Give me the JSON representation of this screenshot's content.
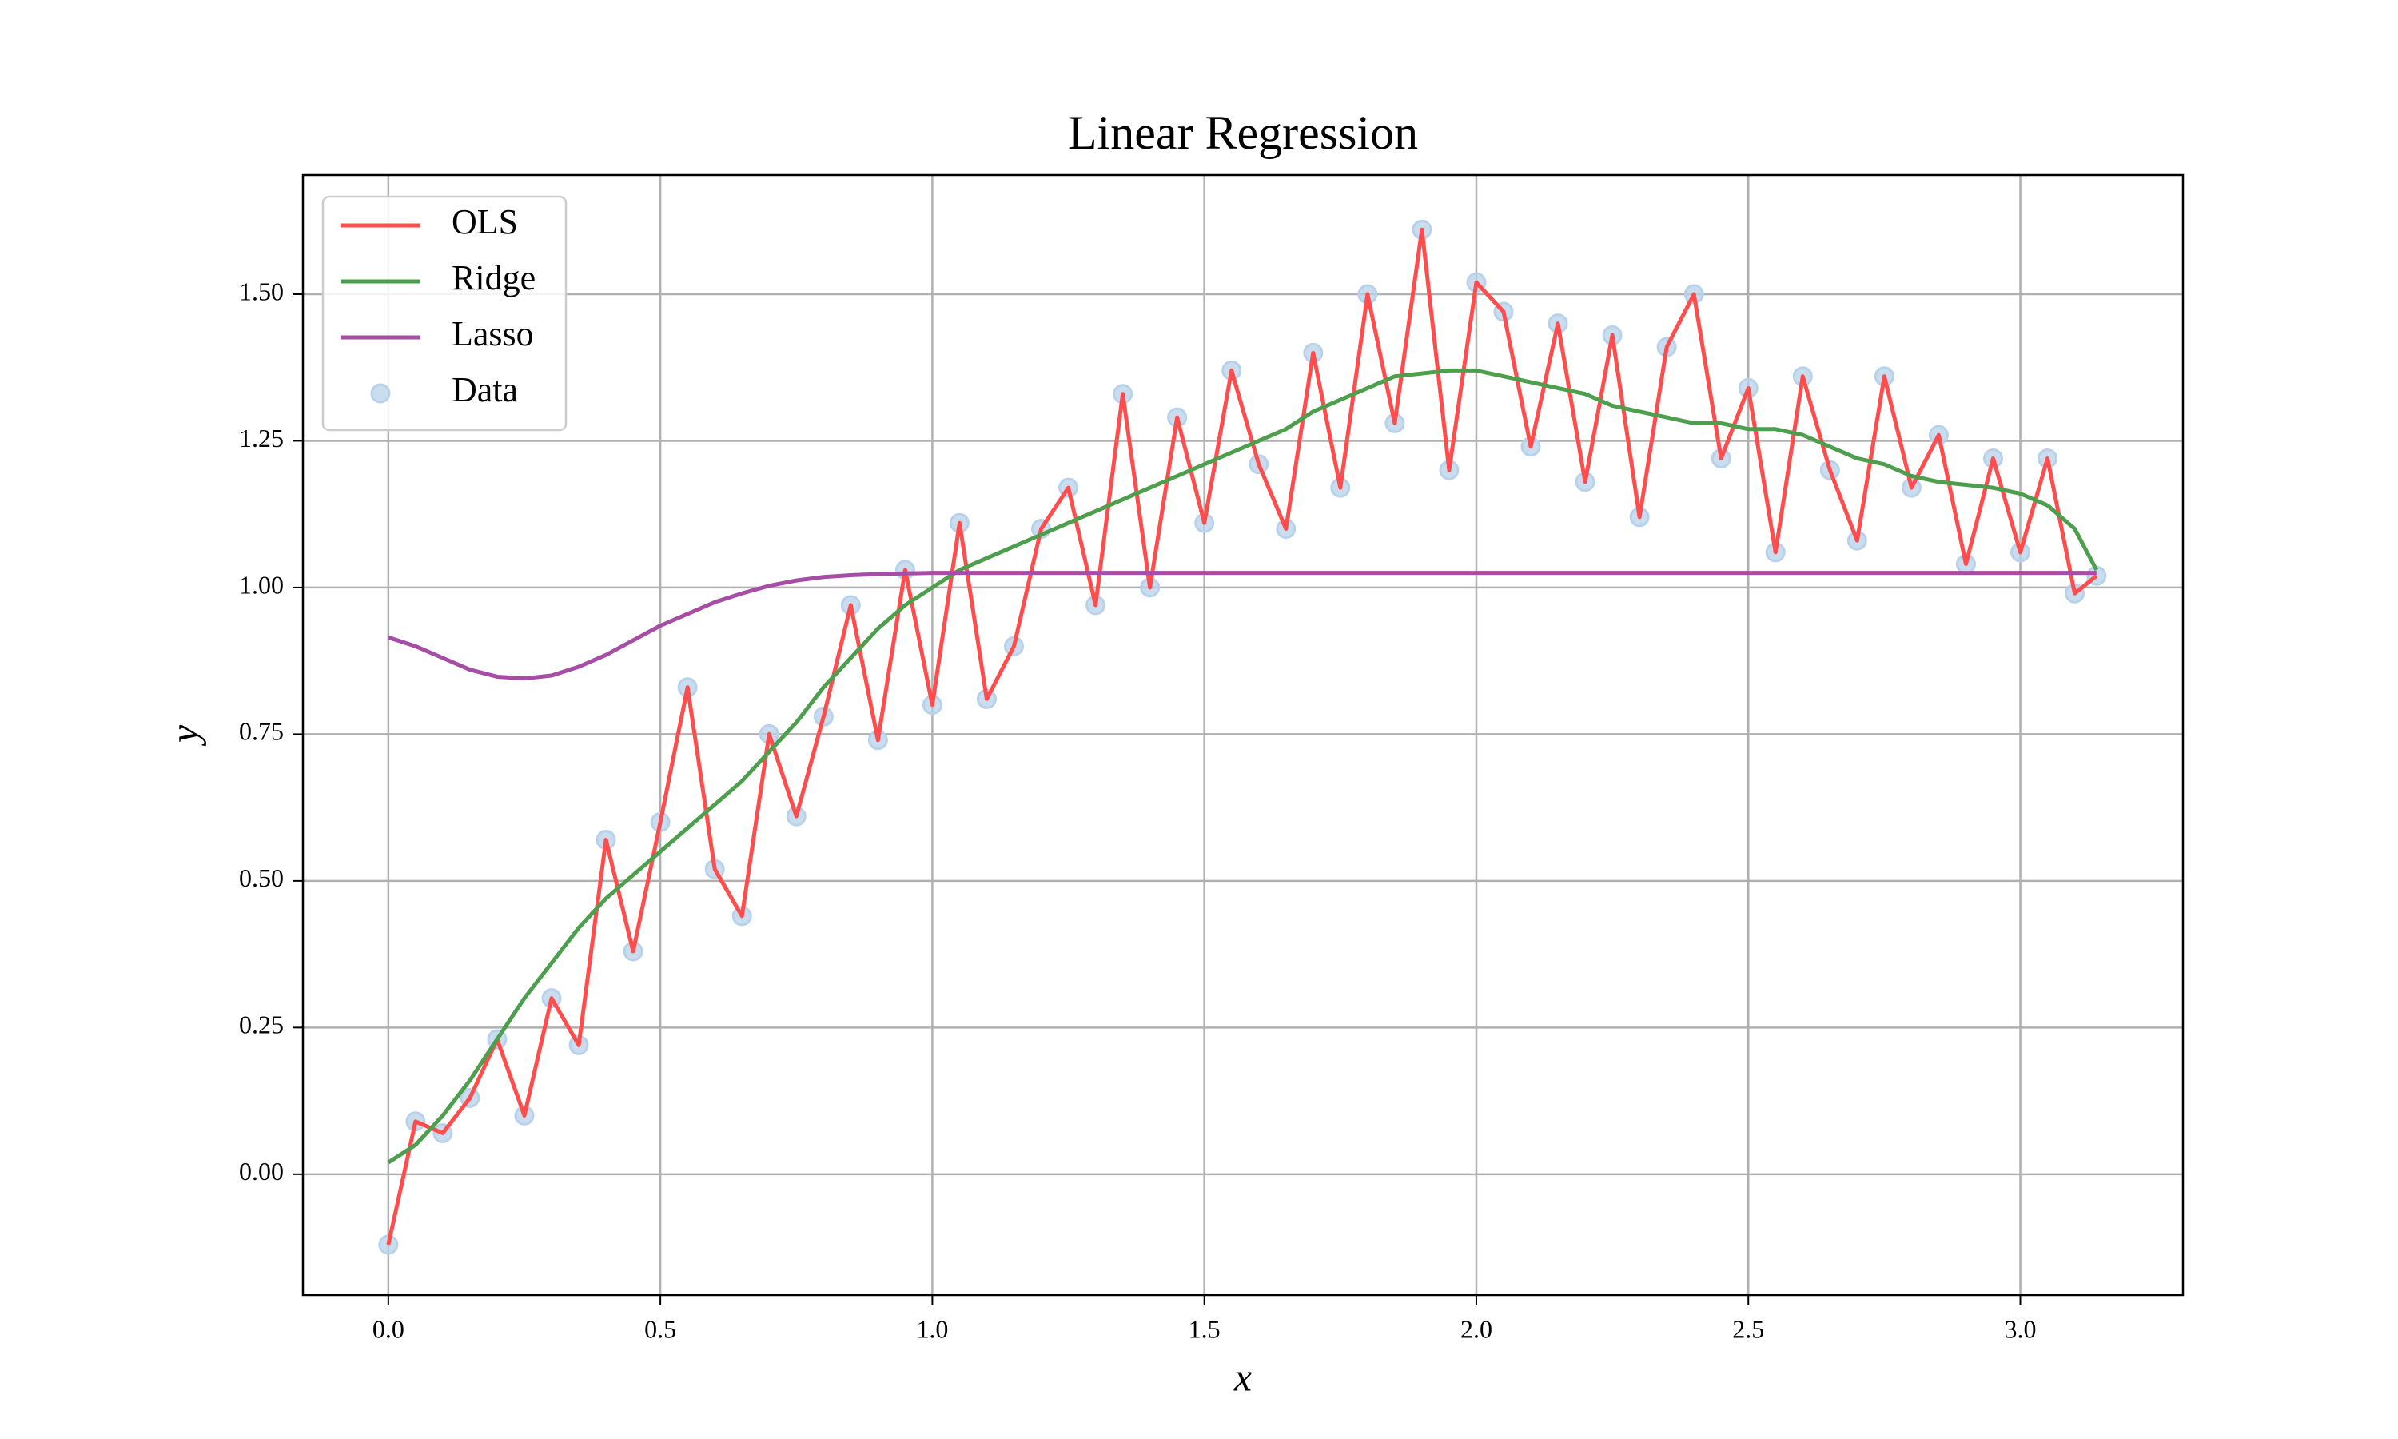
{
  "chart_data": {
    "type": "line",
    "title": "Linear Regression",
    "xlabel": "x",
    "ylabel": "y",
    "xlim": [
      -0.157,
      3.299
    ],
    "ylim": [
      -0.206,
      1.703
    ],
    "xticks": [
      {
        "value": 0,
        "label": "0.0"
      },
      {
        "value": 0.5,
        "label": "0.5"
      },
      {
        "value": 1,
        "label": "1.0"
      },
      {
        "value": 1.5,
        "label": "1.5"
      },
      {
        "value": 2,
        "label": "2.0"
      },
      {
        "value": 2.5,
        "label": "2.5"
      },
      {
        "value": 3,
        "label": "3.0"
      }
    ],
    "yticks": [
      {
        "value": 0,
        "label": "0.00"
      },
      {
        "value": 0.25,
        "label": "0.25"
      },
      {
        "value": 0.5,
        "label": "0.50"
      },
      {
        "value": 0.75,
        "label": "0.75"
      },
      {
        "value": 1,
        "label": "1.00"
      },
      {
        "value": 1.25,
        "label": "1.25"
      },
      {
        "value": 1.5,
        "label": "1.50"
      }
    ],
    "grid": true,
    "legend": "upper left",
    "x": [
      0,
      0.05,
      0.1,
      0.15,
      0.2,
      0.25,
      0.3,
      0.35,
      0.4,
      0.45,
      0.5,
      0.55,
      0.6,
      0.65,
      0.7,
      0.75,
      0.8,
      0.85,
      0.9,
      0.95,
      1.0,
      1.05,
      1.1,
      1.15,
      1.2,
      1.25,
      1.3,
      1.35,
      1.4,
      1.45,
      1.5,
      1.55,
      1.6,
      1.65,
      1.7,
      1.75,
      1.8,
      1.85,
      1.9,
      1.95,
      2.0,
      2.05,
      2.1,
      2.15,
      2.2,
      2.25,
      2.3,
      2.35,
      2.4,
      2.45,
      2.5,
      2.55,
      2.6,
      2.65,
      2.7,
      2.75,
      2.8,
      2.85,
      2.9,
      2.95,
      3.0,
      3.05,
      3.1,
      3.14
    ],
    "series": [
      {
        "name": "OLS",
        "type": "line",
        "color": "#ff4d4d",
        "values": [
          -0.12,
          0.09,
          0.07,
          0.13,
          0.23,
          0.1,
          0.3,
          0.22,
          0.57,
          0.38,
          0.6,
          0.83,
          0.52,
          0.44,
          0.75,
          0.61,
          0.78,
          0.97,
          0.74,
          1.03,
          0.8,
          1.11,
          0.81,
          0.9,
          1.1,
          1.17,
          0.97,
          1.33,
          1.0,
          1.29,
          1.11,
          1.37,
          1.21,
          1.1,
          1.4,
          1.17,
          1.5,
          1.28,
          1.61,
          1.2,
          1.52,
          1.47,
          1.24,
          1.45,
          1.18,
          1.43,
          1.12,
          1.41,
          1.5,
          1.22,
          1.34,
          1.06,
          1.36,
          1.2,
          1.08,
          1.36,
          1.17,
          1.26,
          1.04,
          1.22,
          1.06,
          1.22,
          0.99,
          1.02
        ]
      },
      {
        "name": "Ridge",
        "type": "line",
        "color": "#4d9f4d",
        "values": [
          0.02,
          0.05,
          0.1,
          0.16,
          0.23,
          0.3,
          0.36,
          0.42,
          0.47,
          0.51,
          0.55,
          0.59,
          0.63,
          0.67,
          0.72,
          0.77,
          0.83,
          0.88,
          0.93,
          0.97,
          1.0,
          1.03,
          1.05,
          1.07,
          1.09,
          1.11,
          1.13,
          1.15,
          1.17,
          1.19,
          1.21,
          1.23,
          1.25,
          1.27,
          1.3,
          1.32,
          1.34,
          1.36,
          1.365,
          1.37,
          1.37,
          1.36,
          1.35,
          1.34,
          1.33,
          1.31,
          1.3,
          1.29,
          1.28,
          1.28,
          1.27,
          1.27,
          1.26,
          1.24,
          1.22,
          1.21,
          1.19,
          1.18,
          1.175,
          1.17,
          1.16,
          1.14,
          1.1,
          1.03
        ]
      },
      {
        "name": "Lasso",
        "type": "line",
        "color": "#a64da6",
        "values": [
          0.915,
          0.9,
          0.88,
          0.86,
          0.848,
          0.845,
          0.85,
          0.865,
          0.885,
          0.91,
          0.935,
          0.955,
          0.975,
          0.99,
          1.003,
          1.012,
          1.018,
          1.021,
          1.023,
          1.024,
          1.025,
          1.025,
          1.025,
          1.025,
          1.025,
          1.025,
          1.025,
          1.025,
          1.025,
          1.025,
          1.025,
          1.025,
          1.025,
          1.025,
          1.025,
          1.025,
          1.025,
          1.025,
          1.025,
          1.025,
          1.025,
          1.025,
          1.025,
          1.025,
          1.025,
          1.025,
          1.025,
          1.025,
          1.025,
          1.025,
          1.025,
          1.025,
          1.025,
          1.025,
          1.025,
          1.025,
          1.025,
          1.025,
          1.025,
          1.025,
          1.025,
          1.025,
          1.025,
          1.025
        ]
      },
      {
        "name": "Data",
        "type": "scatter",
        "color": "#b7d2ea",
        "values": [
          -0.12,
          0.09,
          0.07,
          0.13,
          0.23,
          0.1,
          0.3,
          0.22,
          0.57,
          0.38,
          0.6,
          0.83,
          0.52,
          0.44,
          0.75,
          0.61,
          0.78,
          0.97,
          0.74,
          1.03,
          0.8,
          1.11,
          0.81,
          0.9,
          1.1,
          1.17,
          0.97,
          1.33,
          1.0,
          1.29,
          1.11,
          1.37,
          1.21,
          1.1,
          1.4,
          1.17,
          1.5,
          1.28,
          1.61,
          1.2,
          1.52,
          1.47,
          1.24,
          1.45,
          1.18,
          1.43,
          1.12,
          1.41,
          1.5,
          1.22,
          1.34,
          1.06,
          1.36,
          1.2,
          1.08,
          1.36,
          1.17,
          1.26,
          1.04,
          1.22,
          1.06,
          1.22,
          0.99,
          1.02
        ]
      }
    ]
  }
}
